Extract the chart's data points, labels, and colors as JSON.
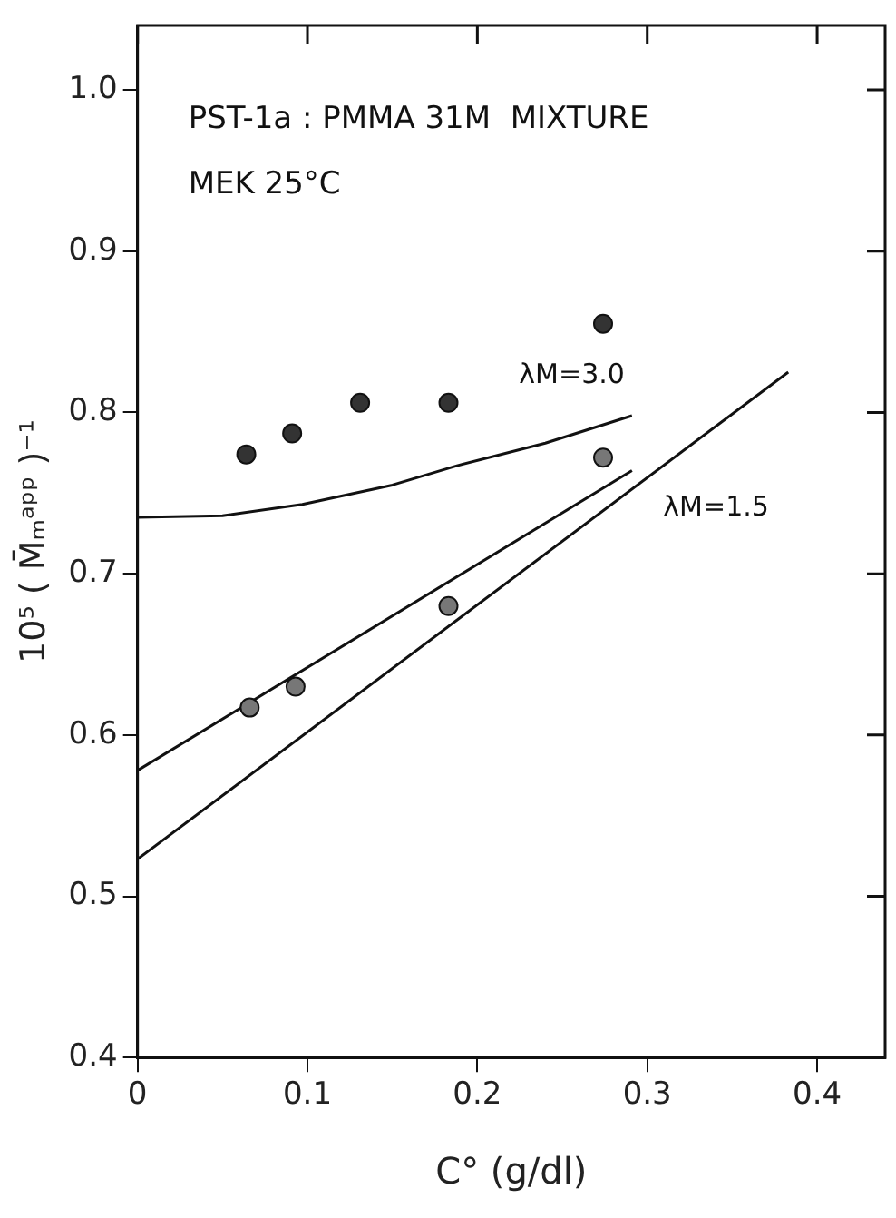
{
  "chart_data": {
    "type": "scatter",
    "xlabel": "C° (g/dl)",
    "ylabel": "10⁵ ( M̄ₘᵃᵖᵖ )⁻¹",
    "annotations": [
      "PST-1a : PMMA 31M  MIXTURE",
      "MEK 25°C"
    ],
    "xlim": [
      0,
      0.44
    ],
    "xticks": [
      0,
      0.1,
      0.2,
      0.3,
      0.4
    ],
    "ylim": [
      0.4,
      1.04
    ],
    "yticks": [
      0.4,
      0.5,
      0.6,
      0.7,
      0.8,
      0.9,
      {
        "value": 1.0,
        "label": "1.0"
      }
    ],
    "grid": false,
    "legend": false,
    "series": [
      {
        "type": "scatter",
        "marker": "circle",
        "color": "#333333",
        "x": [
          0.064,
          0.091,
          0.131,
          0.183,
          0.274
        ],
        "values": [
          0.774,
          0.787,
          0.806,
          0.806,
          0.855
        ]
      },
      {
        "type": "scatter",
        "marker": "circle",
        "color": "#777777",
        "x": [
          0.066,
          0.093,
          0.183,
          0.274
        ],
        "values": [
          0.617,
          0.63,
          0.68,
          0.772
        ]
      },
      {
        "type": "line",
        "name": "λM=3.0",
        "marker": "none",
        "color": "#111111",
        "x": [
          0,
          0.05,
          0.097,
          0.15,
          0.188,
          0.24,
          0.291
        ],
        "values": [
          0.735,
          0.736,
          0.743,
          0.755,
          0.767,
          0.781,
          0.798
        ]
      },
      {
        "type": "line",
        "marker": "none",
        "color": "#111111",
        "x": [
          0,
          0.291
        ],
        "values": [
          0.578,
          0.764
        ]
      },
      {
        "type": "line",
        "name": "λM=1.5",
        "marker": "none",
        "color": "#111111",
        "x": [
          0,
          0.383
        ],
        "values": [
          0.523,
          0.825
        ]
      }
    ]
  }
}
